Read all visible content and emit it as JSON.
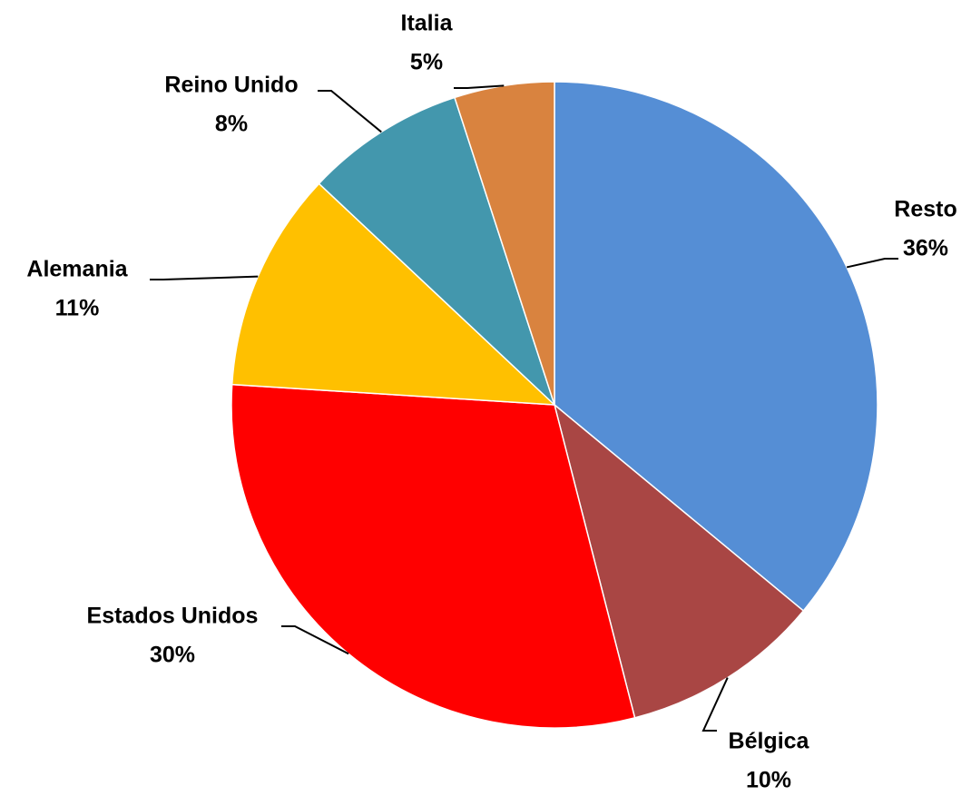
{
  "chart_data": {
    "type": "pie",
    "categories": [
      "Resto",
      "Bélgica",
      "Estados Unidos",
      "Alemania",
      "Reino Unido",
      "Italia"
    ],
    "values": [
      36,
      10,
      30,
      11,
      8,
      5
    ],
    "value_labels": [
      "36%",
      "10%",
      "30%",
      "11%",
      "8%",
      "5%"
    ],
    "colors": [
      "#558ed5",
      "#a94644",
      "#ff0000",
      "#ffc000",
      "#4397ad",
      "#d9833f"
    ]
  }
}
